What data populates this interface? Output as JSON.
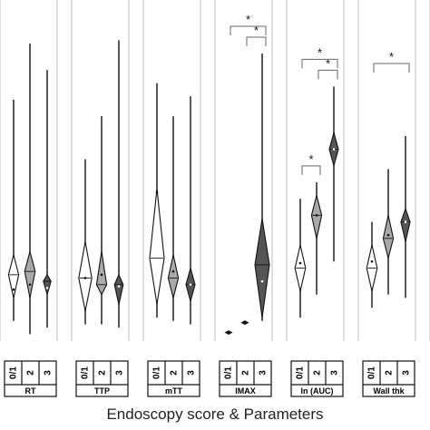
{
  "chart_data": {
    "type": "violin",
    "caption": "Endoscopy score & Parameters",
    "panels": [
      {
        "name": "RT",
        "groups": [
          {
            "label": "0/1",
            "min": 0.28,
            "q1": 0.75,
            "median": 0.81,
            "q3": 0.88,
            "max": 0.95,
            "mean": 0.855
          },
          {
            "label": "2",
            "min": 0.11,
            "q1": 0.74,
            "median": 0.8,
            "q3": 0.88,
            "max": 0.99,
            "mean": 0.84
          },
          {
            "label": "3",
            "min": 0.19,
            "q1": 0.81,
            "median": 0.83,
            "q3": 0.87,
            "max": 0.97,
            "mean": 0.85
          }
        ]
      },
      {
        "name": "TTP",
        "groups": [
          {
            "label": "0/1",
            "min": 0.46,
            "q1": 0.71,
            "median": 0.82,
            "q3": 0.92,
            "max": 0.96,
            "mean": 0.82
          },
          {
            "label": "2",
            "min": 0.33,
            "q1": 0.74,
            "median": 0.84,
            "q3": 0.87,
            "max": 0.96,
            "mean": 0.81
          },
          {
            "label": "3",
            "min": 0.1,
            "q1": 0.81,
            "median": 0.84,
            "q3": 0.9,
            "max": 0.97,
            "mean": 0.845
          }
        ]
      },
      {
        "name": "mTT",
        "groups": [
          {
            "label": "0/1",
            "min": 0.23,
            "q1": 0.55,
            "median": 0.76,
            "q3": 0.9,
            "max": 0.94,
            "mean": 0.56
          },
          {
            "label": "2",
            "min": 0.33,
            "q1": 0.75,
            "median": 0.82,
            "q3": 0.88,
            "max": 0.95,
            "mean": 0.8
          },
          {
            "label": "3",
            "min": 0.27,
            "q1": 0.79,
            "median": 0.84,
            "q3": 0.89,
            "max": 0.96,
            "mean": 0.84
          }
        ]
      },
      {
        "name": "IMAX",
        "groups": [
          {
            "label": "0/1",
            "min": 0.98,
            "q1": 0.98,
            "median": 0.985,
            "q3": 0.99,
            "max": 0.99,
            "mean": 0.985
          },
          {
            "label": "2",
            "min": 0.95,
            "q1": 0.95,
            "median": 0.955,
            "q3": 0.96,
            "max": 0.96,
            "mean": 0.955
          },
          {
            "label": "3",
            "min": 0.14,
            "q1": 0.64,
            "median": 0.78,
            "q3": 0.94,
            "max": 0.95,
            "mean": 0.83
          }
        ]
      },
      {
        "name": "ln (AUC)",
        "groups": [
          {
            "label": "0/1",
            "min": 0.58,
            "q1": 0.72,
            "median": 0.79,
            "q3": 0.86,
            "max": 0.94,
            "mean": 0.775
          },
          {
            "label": "2",
            "min": 0.53,
            "q1": 0.57,
            "median": 0.63,
            "q3": 0.7,
            "max": 0.87,
            "mean": 0.63
          },
          {
            "label": "3",
            "min": 0.24,
            "q1": 0.38,
            "median": 0.43,
            "q3": 0.48,
            "max": 0.77,
            "mean": 0.43
          }
        ]
      },
      {
        "name": "Wall thk",
        "groups": [
          {
            "label": "0/1",
            "min": 0.65,
            "q1": 0.72,
            "median": 0.79,
            "q3": 0.86,
            "max": 0.91,
            "mean": 0.77
          },
          {
            "label": "2",
            "min": 0.49,
            "q1": 0.63,
            "median": 0.7,
            "q3": 0.76,
            "max": 0.87,
            "mean": 0.69
          },
          {
            "label": "3",
            "min": 0.39,
            "q1": 0.61,
            "median": 0.65,
            "q3": 0.71,
            "max": 0.88,
            "mean": 0.65
          }
        ]
      }
    ],
    "significance": [
      {
        "panel": "IMAX",
        "from": "0/1",
        "to": "3",
        "label": "*"
      },
      {
        "panel": "IMAX",
        "from": "2",
        "to": "3",
        "label": "*"
      },
      {
        "panel": "ln (AUC)",
        "from": "0/1",
        "to": "2",
        "label": "*"
      },
      {
        "panel": "ln (AUC)",
        "from": "2",
        "to": "3",
        "label": "*"
      },
      {
        "panel": "ln (AUC)",
        "from": "0/1",
        "to": "3",
        "label": "*"
      },
      {
        "panel": "Wall thk",
        "from": "0/1",
        "to": "3",
        "label": "*"
      }
    ],
    "colors": {
      "0/1": "#ffffff",
      "2": "#a9a9a9",
      "3": "#555555"
    }
  }
}
